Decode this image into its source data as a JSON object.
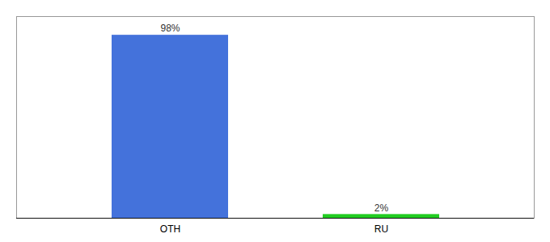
{
  "chart_data": {
    "type": "bar",
    "categories": [
      "OTH",
      "RU"
    ],
    "values": [
      98,
      2
    ],
    "value_labels": [
      "98%",
      "2%"
    ],
    "colors": [
      "#4472db",
      "#22cc22"
    ],
    "ylim": [
      0,
      108
    ],
    "yticks": [],
    "data_labels": true,
    "tick_labels": "x"
  }
}
